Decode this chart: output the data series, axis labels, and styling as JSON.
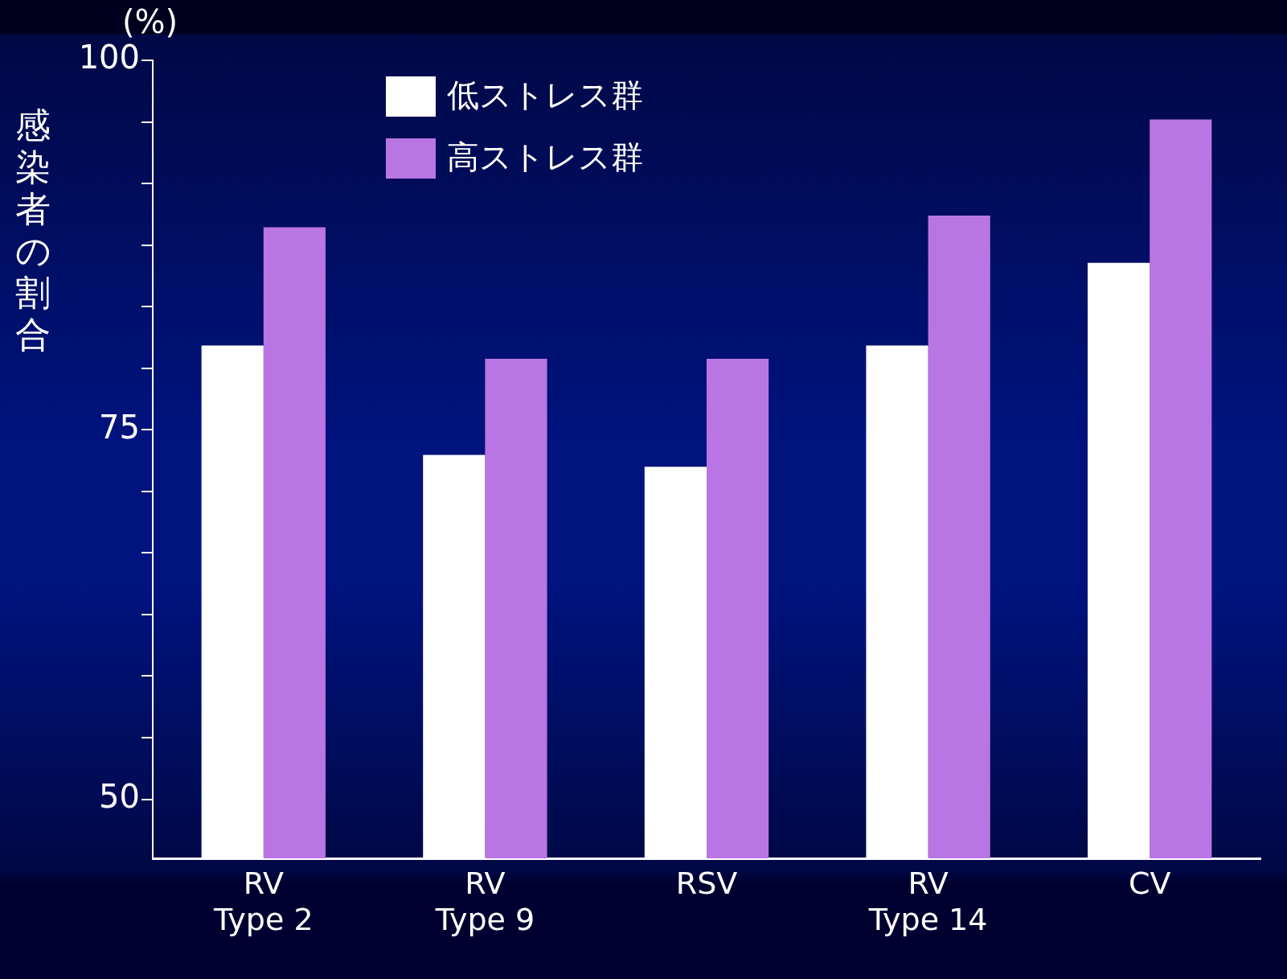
{
  "chart_data": {
    "type": "bar",
    "ylabel": "感染者の割合",
    "annotations": [
      "(%)"
    ],
    "categories": [
      "RV\nType 2",
      "RV\nType 9",
      "RSV",
      "RV\nType 14",
      "CV"
    ],
    "series": [
      {
        "name": "低ストレス群",
        "color": "#ffffff",
        "values": [
          80.7,
          73.3,
          72.5,
          80.7,
          86.3
        ]
      },
      {
        "name": "高ストレス群",
        "color": "#b975e3",
        "values": [
          88.7,
          79.8,
          79.8,
          89.5,
          96.0
        ]
      }
    ],
    "ylim": [
      46,
      100
    ],
    "yticks": [
      50,
      {
        "value": 54.17,
        "label": null
      },
      {
        "value": 58.33,
        "label": null
      },
      {
        "value": 62.5,
        "label": null
      },
      {
        "value": 66.67,
        "label": null
      },
      {
        "value": 70.83,
        "label": null
      },
      75,
      {
        "value": 79.17,
        "label": null
      },
      {
        "value": 83.33,
        "label": null
      },
      {
        "value": 87.5,
        "label": null
      },
      {
        "value": 91.67,
        "label": null
      },
      {
        "value": 95.83,
        "label": null
      },
      100
    ],
    "grid": false,
    "legend": "top"
  }
}
